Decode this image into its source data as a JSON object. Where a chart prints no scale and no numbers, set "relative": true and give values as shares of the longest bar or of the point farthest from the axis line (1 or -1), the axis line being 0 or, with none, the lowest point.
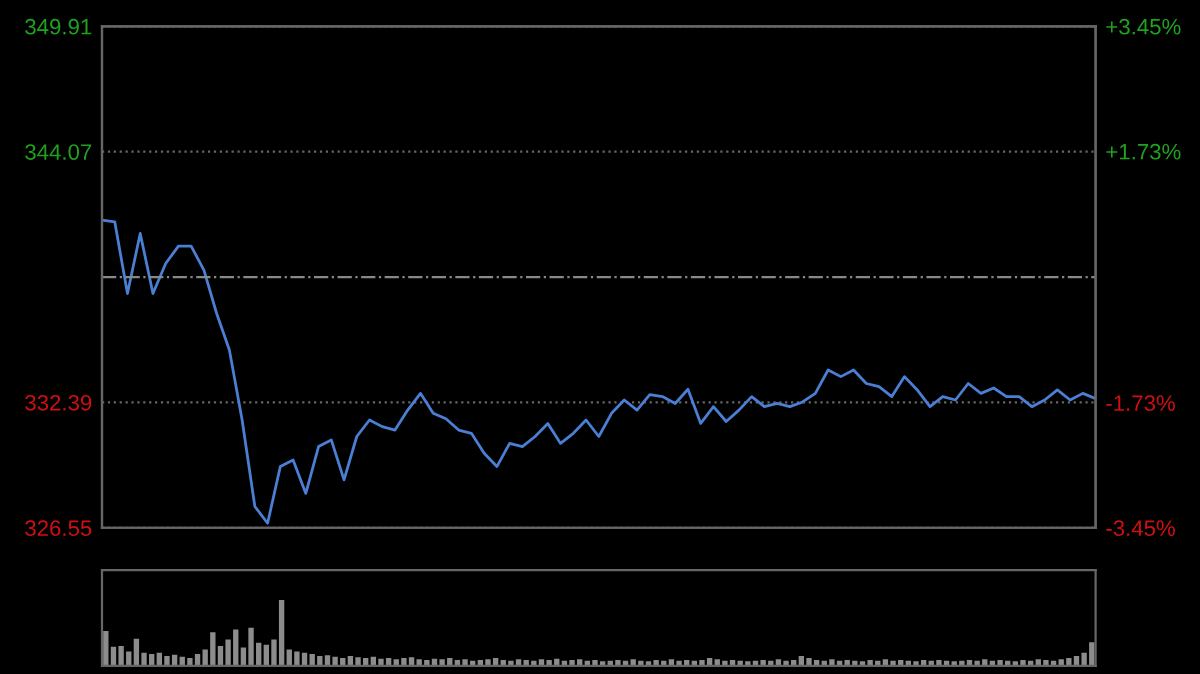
{
  "chart_data": [
    {
      "type": "line",
      "categories": [
        null,
        null,
        null,
        null,
        null,
        null,
        null,
        null,
        null,
        null,
        null,
        null,
        null,
        null,
        null,
        null,
        null,
        null,
        null,
        null,
        null,
        null,
        null,
        null,
        null,
        null,
        null,
        null,
        null,
        null,
        null,
        null,
        null,
        null,
        null,
        null,
        null,
        null,
        null,
        null,
        null,
        null,
        null,
        null,
        null,
        null,
        null,
        null,
        null,
        null,
        null,
        null,
        null,
        null,
        null,
        null,
        null,
        null,
        null,
        null,
        null,
        null,
        null,
        null,
        null,
        null,
        null,
        null,
        null,
        null,
        null,
        null,
        null,
        null,
        null,
        null,
        null,
        null,
        null
      ],
      "series": [
        {
          "color": "#4a7fd4",
          "values": [
            340.88,
            340.8,
            337.46,
            340.26,
            337.46,
            338.86,
            339.67,
            339.67,
            338.55,
            336.53,
            334.83,
            331.57,
            327.54,
            326.76,
            329.4,
            329.71,
            328.15,
            330.33,
            330.64,
            328.78,
            330.8,
            331.57,
            331.26,
            331.1,
            332.03,
            332.81,
            331.88,
            331.63,
            331.1,
            330.95,
            330.02,
            329.4,
            330.48,
            330.33,
            330.8,
            331.41,
            330.48,
            330.95,
            331.57,
            330.8,
            331.88,
            332.5,
            332.03,
            332.75,
            332.66,
            332.34,
            333.0,
            331.41,
            332.19,
            331.5,
            332.03,
            332.66,
            332.19,
            332.34,
            332.19,
            332.41,
            332.81,
            333.9,
            333.59,
            333.9,
            333.27,
            333.12,
            332.66,
            333.59,
            332.97,
            332.19,
            332.66,
            332.5,
            333.27,
            332.81,
            333.06,
            332.66,
            332.66,
            332.19,
            332.5,
            332.97,
            332.5,
            332.81,
            332.57
          ]
        }
      ],
      "ylim": [
        326.55,
        349.91
      ],
      "yticks": [
        326.55,
        332.39,
        344.07,
        349.91
      ],
      "y2lim": [
        -3.45,
        3.45
      ],
      "y2ticks": [
        {
          "value": -3.45,
          "label": "-3.45%"
        },
        {
          "value": -1.73,
          "label": "-1.73%"
        },
        {
          "value": 1.73,
          "label": "+1.73%"
        },
        {
          "value": 3.45,
          "label": "+3.45%"
        }
      ],
      "ref_lines": [
        {
          "axis": "y",
          "value": 338.23,
          "line_style": "dashdot",
          "color": "#888888"
        }
      ],
      "grid": "y"
    },
    {
      "type": "bar",
      "relative": true,
      "color": "#8c8c8c",
      "categories": [
        null,
        null,
        null,
        null,
        null,
        null,
        null,
        null,
        null,
        null,
        null,
        null,
        null,
        null,
        null,
        null,
        null,
        null,
        null,
        null,
        null,
        null,
        null,
        null,
        null,
        null,
        null,
        null,
        null,
        null,
        null,
        null,
        null,
        null,
        null,
        null,
        null,
        null,
        null,
        null,
        null,
        null,
        null,
        null,
        null,
        null,
        null,
        null,
        null,
        null,
        null,
        null,
        null,
        null,
        null,
        null,
        null,
        null,
        null,
        null,
        null,
        null,
        null,
        null,
        null,
        null,
        null,
        null,
        null,
        null,
        null,
        null,
        null,
        null,
        null,
        null,
        null,
        null,
        null,
        null,
        null,
        null,
        null,
        null,
        null,
        null,
        null,
        null,
        null,
        null,
        null,
        null,
        null,
        null,
        null,
        null,
        null,
        null,
        null,
        null,
        null,
        null,
        null,
        null,
        null,
        null,
        null,
        null,
        null,
        null,
        null,
        null,
        null,
        null,
        null,
        null,
        null,
        null,
        null,
        null,
        null,
        null,
        null,
        null,
        null,
        null,
        null,
        null,
        null,
        null
      ],
      "values": [
        0.53,
        0.29,
        0.3,
        0.22,
        0.41,
        0.2,
        0.18,
        0.2,
        0.15,
        0.17,
        0.14,
        0.12,
        0.18,
        0.25,
        0.51,
        0.3,
        0.4,
        0.55,
        0.28,
        0.58,
        0.35,
        0.32,
        0.4,
        1.0,
        0.25,
        0.22,
        0.2,
        0.18,
        0.15,
        0.16,
        0.14,
        0.12,
        0.15,
        0.13,
        0.12,
        0.14,
        0.11,
        0.12,
        0.1,
        0.12,
        0.13,
        0.1,
        0.09,
        0.11,
        0.1,
        0.12,
        0.09,
        0.1,
        0.08,
        0.09,
        0.1,
        0.12,
        0.09,
        0.08,
        0.1,
        0.09,
        0.08,
        0.1,
        0.09,
        0.11,
        0.08,
        0.09,
        0.1,
        0.08,
        0.09,
        0.07,
        0.08,
        0.09,
        0.08,
        0.1,
        0.08,
        0.07,
        0.09,
        0.08,
        0.1,
        0.08,
        0.09,
        0.08,
        0.09,
        0.12,
        0.1,
        0.08,
        0.09,
        0.08,
        0.07,
        0.08,
        0.09,
        0.08,
        0.1,
        0.08,
        0.09,
        0.15,
        0.12,
        0.09,
        0.08,
        0.1,
        0.08,
        0.09,
        0.08,
        0.07,
        0.09,
        0.08,
        0.1,
        0.08,
        0.09,
        0.08,
        0.07,
        0.09,
        0.08,
        0.09,
        0.08,
        0.07,
        0.08,
        0.09,
        0.08,
        0.1,
        0.08,
        0.09,
        0.08,
        0.07,
        0.09,
        0.08,
        0.1,
        0.09,
        0.08,
        0.1,
        0.12,
        0.15,
        0.2,
        0.36
      ]
    }
  ]
}
